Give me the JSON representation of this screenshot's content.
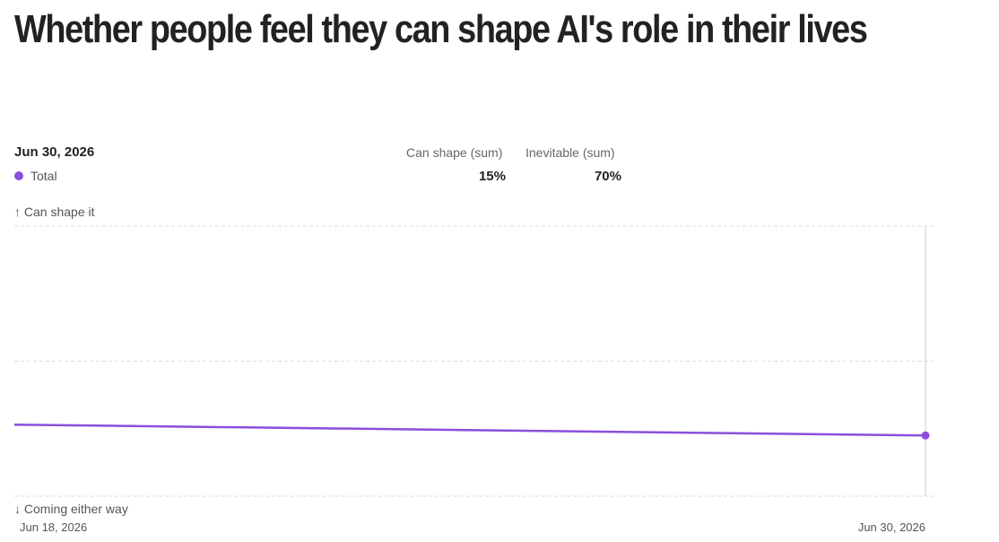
{
  "title": "Whether people feel they can shape AI's role in their lives",
  "tooltip": {
    "date": "Jun 30, 2026",
    "series_label": "Total",
    "columns": [
      {
        "header": "Can shape (sum)",
        "value": "15%"
      },
      {
        "header": "Inevitable (sum)",
        "value": "70%"
      }
    ]
  },
  "axis": {
    "top_label": "↑ Can shape it",
    "bottom_label": "↓ Coming either way"
  },
  "colors": {
    "series": "#8a4fdc",
    "grid": "#dddddd",
    "cursor": "#cccccc"
  },
  "chart_data": {
    "type": "line",
    "title": "Whether people feel they can shape AI's role in their lives",
    "x": [
      "Jun 18, 2026",
      "Jun 30, 2026"
    ],
    "x_ticks": [
      "Jun 18, 2026",
      "Jun 30, 2026"
    ],
    "series": [
      {
        "name": "Total",
        "values": [
          -0.47,
          -0.55
        ]
      }
    ],
    "ylim": [
      -1,
      1
    ],
    "ylabel_top": "↑ Can shape it",
    "ylabel_bottom": "↓ Coming either way",
    "grid": true,
    "highlight_index": 1
  }
}
